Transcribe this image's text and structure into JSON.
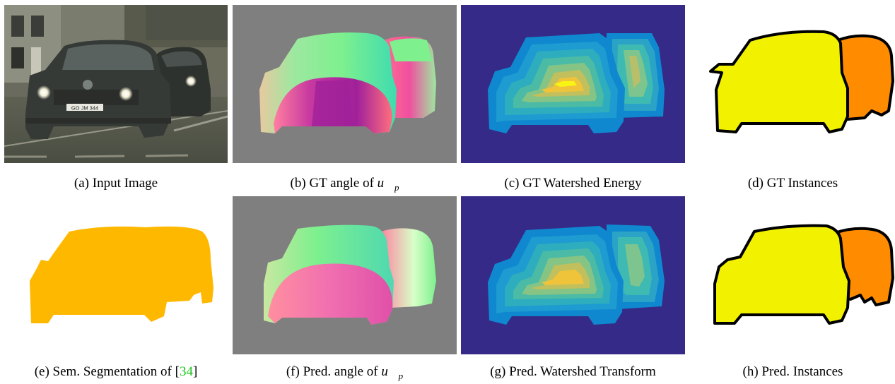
{
  "captions": {
    "a": {
      "prefix": "(a) Input Image"
    },
    "b": {
      "prefix": "(b) GT angle of ",
      "math": "u⃗",
      "sub": "p"
    },
    "c": {
      "prefix": "(c) GT Watershed Energy"
    },
    "d": {
      "prefix": "(d) GT Instances"
    },
    "e": {
      "prefix": "(e) Sem. Segmentation of [",
      "cite": "34",
      "suffix": "]"
    },
    "f": {
      "prefix": "(f) Pred. angle of ",
      "math": "u⃗",
      "sub": "p"
    },
    "g": {
      "prefix": "(g) Pred. Watershed Transform"
    },
    "h": {
      "prefix": "(h) Pred. Instances"
    }
  },
  "scene": {
    "license_plate_text": "GO JM 344"
  },
  "colors": {
    "angle_background": "#7f7f7f",
    "energy_background": "#352a87",
    "instance_front_car": "#f2f200",
    "instance_rear_car": "#ff8c00",
    "instance_outline": "#000000",
    "semantic_car": "#ffb800",
    "cite": "#19c519"
  }
}
